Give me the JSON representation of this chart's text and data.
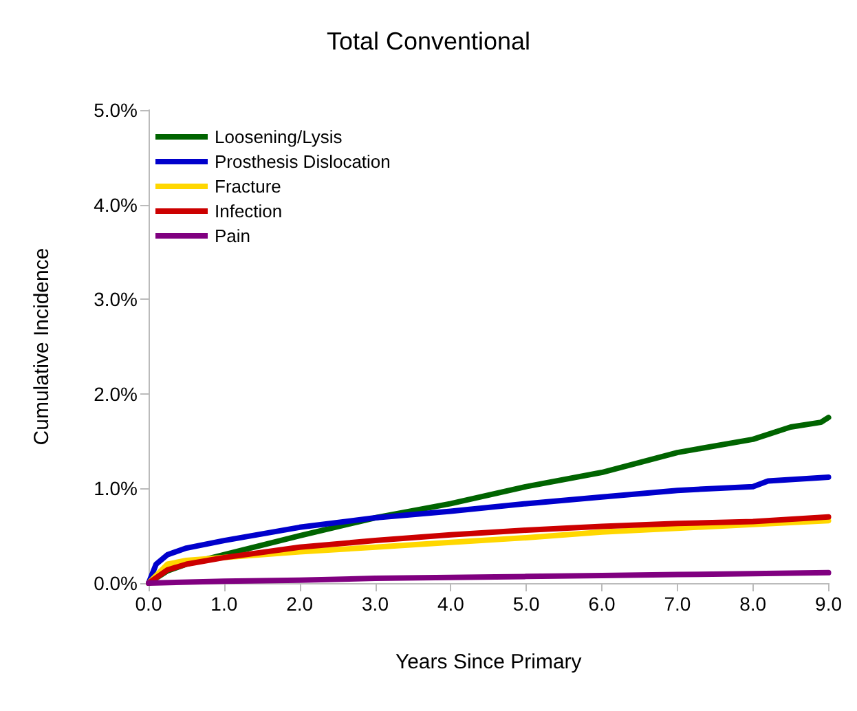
{
  "chart_data": {
    "type": "line",
    "title": "Total Conventional",
    "xlabel": "Years Since Primary",
    "ylabel": "Cumulative Incidence",
    "legend": "top left",
    "grid": false,
    "marker": "none",
    "line_style": "solid",
    "xlim": [
      0,
      9
    ],
    "xticks": [
      {
        "value": 0,
        "label": "0.0"
      },
      {
        "value": 1,
        "label": "1.0"
      },
      {
        "value": 2,
        "label": "2.0"
      },
      {
        "value": 3,
        "label": "3.0"
      },
      {
        "value": 4,
        "label": "4.0"
      },
      {
        "value": 5,
        "label": "5.0"
      },
      {
        "value": 6,
        "label": "6.0"
      },
      {
        "value": 7,
        "label": "7.0"
      },
      {
        "value": 8,
        "label": "8.0"
      },
      {
        "value": 9,
        "label": "9.0"
      }
    ],
    "ylim": [
      0,
      5
    ],
    "yticks": [
      {
        "value": 0,
        "label": "0.0%"
      },
      {
        "value": 1,
        "label": "1.0%"
      },
      {
        "value": 2,
        "label": "2.0%"
      },
      {
        "value": 3,
        "label": "3.0%"
      },
      {
        "value": 4,
        "label": "4.0%"
      },
      {
        "value": 5,
        "label": "5.0%"
      }
    ],
    "series": [
      {
        "name": "Loosening/Lysis",
        "color": "#006400",
        "x": [
          0,
          0.25,
          0.5,
          1,
          2,
          3,
          4,
          5,
          6,
          7,
          8,
          8.5,
          8.9,
          9
        ],
        "values": [
          0,
          0.13,
          0.2,
          0.3,
          0.5,
          0.69,
          0.84,
          1.02,
          1.17,
          1.38,
          1.52,
          1.65,
          1.7,
          1.75
        ]
      },
      {
        "name": "Prosthesis Dislocation",
        "color": "#0000cc",
        "x": [
          0,
          0.1,
          0.25,
          0.5,
          1,
          2,
          3,
          4,
          5,
          6,
          7,
          8,
          8.2,
          9
        ],
        "values": [
          0,
          0.2,
          0.3,
          0.37,
          0.45,
          0.59,
          0.69,
          0.76,
          0.84,
          0.91,
          0.98,
          1.02,
          1.08,
          1.12
        ]
      },
      {
        "name": "Fracture",
        "color": "#ffd700",
        "x": [
          0,
          0.25,
          0.5,
          1,
          2,
          3,
          4,
          5,
          6,
          7,
          8,
          9
        ],
        "values": [
          0,
          0.2,
          0.24,
          0.27,
          0.33,
          0.38,
          0.43,
          0.48,
          0.54,
          0.58,
          0.62,
          0.66
        ]
      },
      {
        "name": "Infection",
        "color": "#cc0000",
        "x": [
          0,
          0.25,
          0.5,
          1,
          2,
          3,
          4,
          5,
          6,
          7,
          8,
          9
        ],
        "values": [
          0,
          0.14,
          0.2,
          0.27,
          0.38,
          0.45,
          0.51,
          0.56,
          0.6,
          0.63,
          0.65,
          0.7
        ]
      },
      {
        "name": "Pain",
        "color": "#800080",
        "x": [
          0,
          1,
          2,
          3,
          4,
          5,
          6,
          7,
          8,
          9
        ],
        "values": [
          0,
          0.02,
          0.03,
          0.05,
          0.06,
          0.07,
          0.08,
          0.09,
          0.1,
          0.11
        ]
      }
    ]
  }
}
